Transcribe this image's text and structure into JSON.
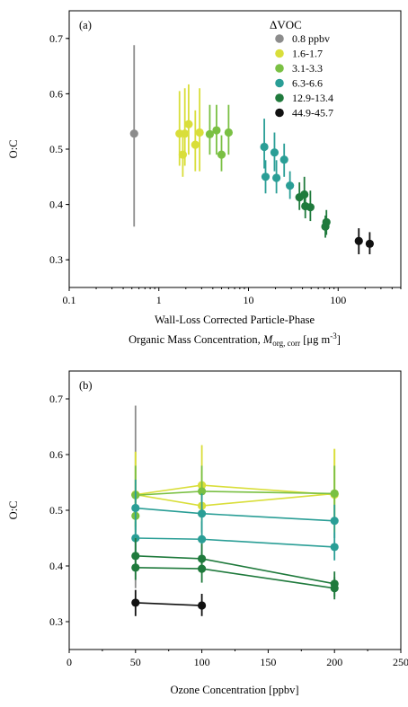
{
  "chart_data": [
    {
      "type": "scatter",
      "panel_label": "(a)",
      "xlabel": "Wall-Loss Corrected Particle-Phase",
      "xlabel_line2": {
        "prefix": "Organic Mass Concentration, ",
        "symbol": "M",
        "subscript": "org, corr",
        "unit_open": " [μg m",
        "unit_exp": "-3",
        "unit_close": "]"
      },
      "ylabel": "O:C",
      "xscale": "log",
      "xlim": [
        0.1,
        500
      ],
      "ylim": [
        0.25,
        0.75
      ],
      "xticks": [
        0.1,
        1,
        10,
        100
      ],
      "xtick_labels": [
        "0.1",
        "1",
        "10",
        "100"
      ],
      "yticks": [
        0.3,
        0.4,
        0.5,
        0.6,
        0.7
      ],
      "ytick_labels": [
        "0.3",
        "0.4",
        "0.5",
        "0.6",
        "0.7"
      ],
      "grid": false,
      "legend": {
        "title": "ΔVOC",
        "placement": "top-right",
        "entries": [
          "0.8 ppbv",
          "1.6-1.7",
          "3.1-3.3",
          "6.3-6.6",
          "12.9-13.4",
          "44.9-45.7"
        ]
      },
      "series": [
        {
          "name": "0.8 ppbv",
          "color": "#8c8c8c",
          "points": [
            {
              "x": 0.53,
              "y": 0.528,
              "lo": 0.36,
              "hi": 0.688
            }
          ]
        },
        {
          "name": "1.6-1.7",
          "color": "#d9de3a",
          "points": [
            {
              "x": 1.7,
              "y": 0.528,
              "lo": 0.47,
              "hi": 0.605
            },
            {
              "x": 1.85,
              "y": 0.49,
              "lo": 0.45,
              "hi": 0.525
            },
            {
              "x": 1.95,
              "y": 0.528,
              "lo": 0.47,
              "hi": 0.61
            },
            {
              "x": 2.15,
              "y": 0.545,
              "lo": 0.49,
              "hi": 0.617
            },
            {
              "x": 2.55,
              "y": 0.508,
              "lo": 0.46,
              "hi": 0.57
            },
            {
              "x": 2.85,
              "y": 0.53,
              "lo": 0.46,
              "hi": 0.61
            }
          ]
        },
        {
          "name": "3.1-3.3",
          "color": "#7ac043",
          "points": [
            {
              "x": 3.7,
              "y": 0.527,
              "lo": 0.49,
              "hi": 0.58
            },
            {
              "x": 4.4,
              "y": 0.534,
              "lo": 0.49,
              "hi": 0.58
            },
            {
              "x": 5.0,
              "y": 0.49,
              "lo": 0.46,
              "hi": 0.525
            },
            {
              "x": 6.0,
              "y": 0.53,
              "lo": 0.49,
              "hi": 0.58
            }
          ]
        },
        {
          "name": "6.3-6.6",
          "color": "#2a9e96",
          "points": [
            {
              "x": 15.0,
              "y": 0.504,
              "lo": 0.465,
              "hi": 0.555
            },
            {
              "x": 15.5,
              "y": 0.45,
              "lo": 0.42,
              "hi": 0.48
            },
            {
              "x": 19.5,
              "y": 0.494,
              "lo": 0.46,
              "hi": 0.53
            },
            {
              "x": 20.5,
              "y": 0.448,
              "lo": 0.42,
              "hi": 0.48
            },
            {
              "x": 25.0,
              "y": 0.481,
              "lo": 0.45,
              "hi": 0.51
            },
            {
              "x": 29.0,
              "y": 0.434,
              "lo": 0.41,
              "hi": 0.46
            }
          ]
        },
        {
          "name": "12.9-13.4",
          "color": "#1f7a3c",
          "points": [
            {
              "x": 37.0,
              "y": 0.413,
              "lo": 0.39,
              "hi": 0.44
            },
            {
              "x": 42.0,
              "y": 0.418,
              "lo": 0.39,
              "hi": 0.45
            },
            {
              "x": 43.0,
              "y": 0.397,
              "lo": 0.375,
              "hi": 0.425
            },
            {
              "x": 49.0,
              "y": 0.395,
              "lo": 0.37,
              "hi": 0.425
            },
            {
              "x": 74.0,
              "y": 0.368,
              "lo": 0.345,
              "hi": 0.39
            },
            {
              "x": 72.0,
              "y": 0.36,
              "lo": 0.34,
              "hi": 0.38
            }
          ]
        },
        {
          "name": "44.9-45.7",
          "color": "#111111",
          "points": [
            {
              "x": 170.0,
              "y": 0.334,
              "lo": 0.31,
              "hi": 0.357
            },
            {
              "x": 225.0,
              "y": 0.329,
              "lo": 0.31,
              "hi": 0.35
            }
          ]
        }
      ]
    },
    {
      "type": "line",
      "panel_label": "(b)",
      "xlabel": "Ozone Concentration [ppbv]",
      "ylabel": "O:C",
      "xlim": [
        0,
        250
      ],
      "ylim": [
        0.25,
        0.75
      ],
      "xticks": [
        0,
        50,
        100,
        150,
        200,
        250
      ],
      "xtick_labels": [
        "0",
        "50",
        "100",
        "150",
        "200",
        "250"
      ],
      "yticks": [
        0.3,
        0.4,
        0.5,
        0.6,
        0.7
      ],
      "ytick_labels": [
        "0.3",
        "0.4",
        "0.5",
        "0.6",
        "0.7"
      ],
      "grid": false,
      "series": [
        {
          "name": "0.8 ppbv",
          "color": "#8c8c8c",
          "points": [
            {
              "x": 50,
              "y": 0.528,
              "lo": 0.36,
              "hi": 0.688
            }
          ]
        },
        {
          "name": "1.6-1.7",
          "color": "#d9de3a",
          "points": [
            {
              "x": 50,
              "y": 0.528,
              "lo": 0.47,
              "hi": 0.605
            },
            {
              "x": 100,
              "y": 0.545,
              "lo": 0.49,
              "hi": 0.617
            },
            {
              "x": 200,
              "y": 0.528,
              "lo": 0.46,
              "hi": 0.61
            }
          ]
        },
        {
          "name": "1.6-1.7",
          "color": "#d9de3a",
          "points": [
            {
              "x": 50,
              "y": 0.528,
              "lo": 0.47,
              "hi": 0.605
            },
            {
              "x": 100,
              "y": 0.508,
              "lo": 0.46,
              "hi": 0.57
            },
            {
              "x": 200,
              "y": 0.53,
              "lo": 0.46,
              "hi": 0.61
            }
          ]
        },
        {
          "name": "3.1-3.3",
          "color": "#7ac043",
          "points": [
            {
              "x": 50,
              "y": 0.527,
              "lo": 0.49,
              "hi": 0.58
            },
            {
              "x": 100,
              "y": 0.534,
              "lo": 0.49,
              "hi": 0.58
            },
            {
              "x": 200,
              "y": 0.53,
              "lo": 0.49,
              "hi": 0.58
            }
          ]
        },
        {
          "name": "3.1-3.3",
          "color": "#7ac043",
          "points": [
            {
              "x": 50,
              "y": 0.49,
              "lo": 0.46,
              "hi": 0.525
            }
          ]
        },
        {
          "name": "6.3-6.6",
          "color": "#2a9e96",
          "points": [
            {
              "x": 50,
              "y": 0.504,
              "lo": 0.465,
              "hi": 0.555
            },
            {
              "x": 100,
              "y": 0.494,
              "lo": 0.46,
              "hi": 0.53
            },
            {
              "x": 200,
              "y": 0.481,
              "lo": 0.45,
              "hi": 0.51
            }
          ]
        },
        {
          "name": "6.3-6.6",
          "color": "#2a9e96",
          "points": [
            {
              "x": 50,
              "y": 0.45,
              "lo": 0.42,
              "hi": 0.48
            },
            {
              "x": 100,
              "y": 0.448,
              "lo": 0.42,
              "hi": 0.48
            },
            {
              "x": 200,
              "y": 0.434,
              "lo": 0.41,
              "hi": 0.46
            }
          ]
        },
        {
          "name": "12.9-13.4",
          "color": "#1f7a3c",
          "points": [
            {
              "x": 50,
              "y": 0.418,
              "lo": 0.39,
              "hi": 0.45
            },
            {
              "x": 100,
              "y": 0.413,
              "lo": 0.39,
              "hi": 0.44
            },
            {
              "x": 200,
              "y": 0.368,
              "lo": 0.345,
              "hi": 0.39
            }
          ]
        },
        {
          "name": "12.9-13.4",
          "color": "#1f7a3c",
          "points": [
            {
              "x": 50,
              "y": 0.397,
              "lo": 0.375,
              "hi": 0.425
            },
            {
              "x": 100,
              "y": 0.395,
              "lo": 0.37,
              "hi": 0.425
            },
            {
              "x": 200,
              "y": 0.36,
              "lo": 0.34,
              "hi": 0.38
            }
          ]
        },
        {
          "name": "44.9-45.7",
          "color": "#111111",
          "points": [
            {
              "x": 50,
              "y": 0.334,
              "lo": 0.31,
              "hi": 0.357
            },
            {
              "x": 100,
              "y": 0.329,
              "lo": 0.31,
              "hi": 0.35
            }
          ]
        }
      ]
    }
  ]
}
